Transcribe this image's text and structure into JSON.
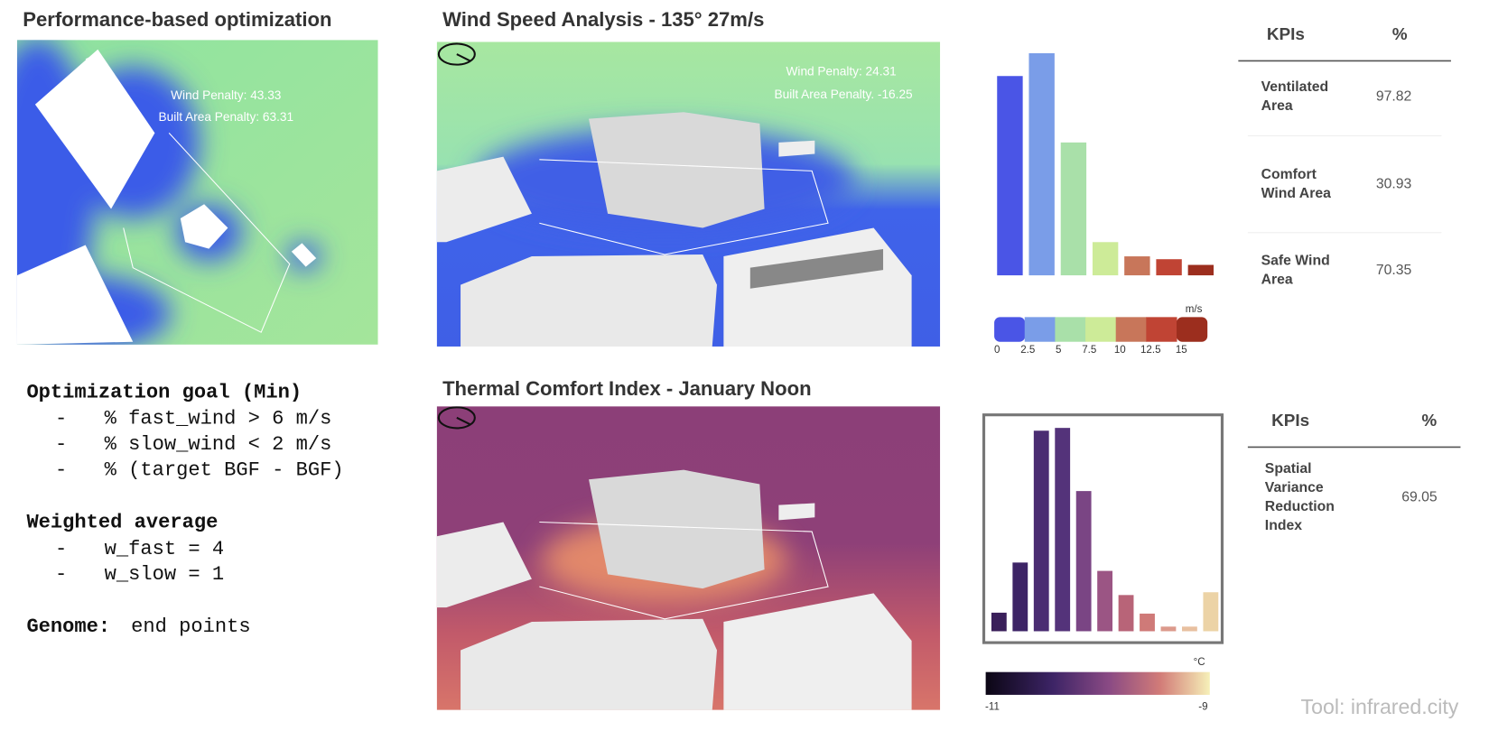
{
  "panels": {
    "optimization": {
      "title": "Performance-based optimization",
      "overlay": [
        "Wind Penalty: 43.33",
        "Built Area Penalty: 63.31"
      ]
    },
    "wind": {
      "title": "Wind Speed Analysis - 135° 27m/s",
      "overlay": [
        "Wind Penalty: 24.31",
        "Built Area Penalty. -16.25"
      ]
    },
    "thermal": {
      "title": "Thermal Comfort Index - January Noon"
    }
  },
  "goal": {
    "heading": "Optimization goal (Min)",
    "items": [
      "% fast_wind > 6 m/s",
      "% slow_wind < 2 m/s",
      "% (target BGF - BGF)"
    ],
    "weights_heading": "Weighted average",
    "weights": [
      "w_fast = 4",
      "w_slow = 1"
    ],
    "genome_label": "Genome:",
    "genome_value": "end points"
  },
  "chart_data": [
    {
      "type": "bar",
      "values": [
        210,
        234,
        140,
        35,
        20,
        17,
        11
      ],
      "ylim": [
        0,
        240
      ],
      "colors": [
        "#4a55e6",
        "#7a9de8",
        "#a9e0a9",
        "#cdeb98",
        "#c8765a",
        "#c04434",
        "#9c2e1e"
      ],
      "colorbar": {
        "unit": "m/s",
        "ticks": [
          0,
          2.5,
          5,
          7.5,
          10,
          12.5,
          15
        ],
        "lim": [
          0,
          15
        ]
      }
    },
    {
      "type": "bar",
      "values": [
        20,
        74,
        216,
        219,
        151,
        65,
        39,
        19,
        5,
        5,
        42
      ],
      "ylim": [
        0,
        230
      ],
      "colors": [
        "#3a1f5a",
        "#3d2466",
        "#4a2c72",
        "#54337a",
        "#7a4584",
        "#9b5584",
        "#b86478",
        "#cf7a78",
        "#dc9a8c",
        "#e8c0a0",
        "#ecd3a6"
      ],
      "colorbar": {
        "unit": "°C",
        "ticks": [
          -11,
          -9
        ],
        "lim": [
          -11,
          -9
        ]
      }
    }
  ],
  "kpi_tables": [
    {
      "header": [
        "KPIs",
        "%"
      ],
      "rows": [
        [
          "Ventilated Area",
          97.82
        ],
        [
          "Comfort Wind Area",
          30.93
        ],
        [
          "Safe Wind Area",
          70.35
        ]
      ]
    },
    {
      "header": [
        "KPIs",
        "%"
      ],
      "rows": [
        [
          "Spatial Variance Reduction Index",
          69.05
        ]
      ]
    }
  ],
  "footer": "Tool: infrared.city"
}
